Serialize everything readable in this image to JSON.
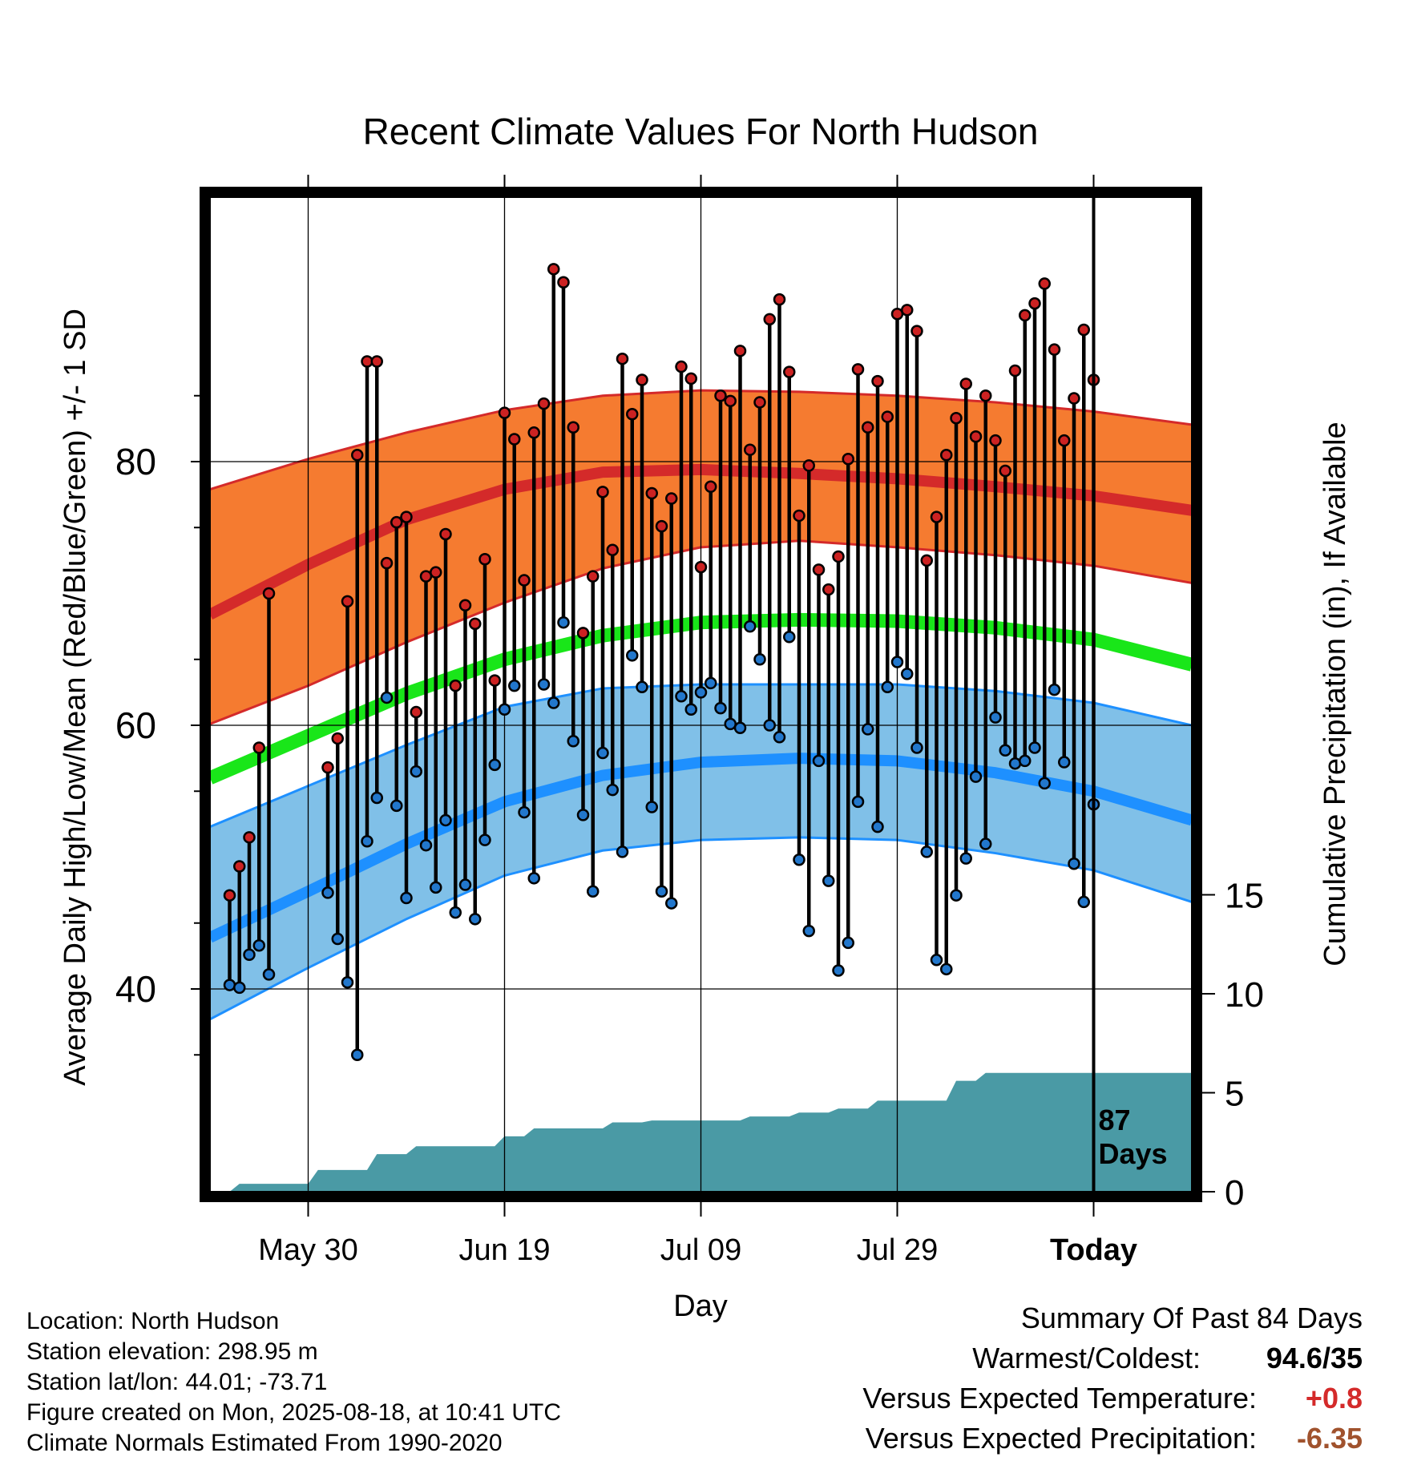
{
  "chart_data": {
    "type": "line",
    "title": "Recent Climate Values For North Hudson",
    "xlabel": "Day",
    "ylabel_left": "Average Daily High/Low/Mean (Red/Blue/Green) +/- 1 SD",
    "ylabel_right": "Cumulative Precipitation (in), If Available",
    "x_tick_labels": [
      "May 30",
      "Jun 19",
      "Jul 09",
      "Jul 29",
      "Today"
    ],
    "x_tick_day_index": [
      10,
      30,
      50,
      70,
      90
    ],
    "x_range_days": [
      0,
      100
    ],
    "ylim_left": [
      25,
      100
    ],
    "y_tick_labels_left": [
      "40",
      "60",
      "80"
    ],
    "y_tick_values_left": [
      40,
      60,
      80
    ],
    "ylim_right": [
      0,
      50
    ],
    "y_tick_labels_right": [
      "0",
      "5",
      "10",
      "15"
    ],
    "y_tick_values_right": [
      0,
      5,
      10,
      15
    ],
    "grid": true,
    "today_marker_label": "87\nDays",
    "today_line_day": 90,
    "normals": {
      "day": [
        0,
        10,
        20,
        30,
        40,
        50,
        60,
        70,
        80,
        90,
        100
      ],
      "high_mean": [
        68.4,
        72.2,
        75.6,
        77.9,
        79.2,
        79.4,
        79.1,
        78.7,
        78.1,
        77.4,
        76.3
      ],
      "high_upper": [
        77.9,
        80.2,
        82.2,
        83.9,
        85.0,
        85.4,
        85.3,
        85.0,
        84.5,
        83.8,
        82.8
      ],
      "high_lower": [
        60.1,
        63.0,
        66.3,
        69.3,
        71.9,
        73.5,
        74.0,
        73.5,
        72.9,
        72.1,
        70.8
      ],
      "mean": [
        56.0,
        59.2,
        62.4,
        65.0,
        66.8,
        67.8,
        68.0,
        67.9,
        67.4,
        66.5,
        64.6
      ],
      "low_mean": [
        43.9,
        47.4,
        51.0,
        54.2,
        56.2,
        57.2,
        57.5,
        57.3,
        56.4,
        55.0,
        52.8
      ],
      "low_upper": [
        52.3,
        55.4,
        58.5,
        61.4,
        62.8,
        63.1,
        63.1,
        63.1,
        62.6,
        61.7,
        60.0
      ],
      "low_lower": [
        37.7,
        41.6,
        45.3,
        48.6,
        50.5,
        51.3,
        51.5,
        51.3,
        50.3,
        49.0,
        46.6
      ]
    },
    "series": [
      {
        "name": "High",
        "color": "#cc2222",
        "values": [
          47.1,
          49.3,
          51.5,
          58.3,
          70.0,
          null,
          null,
          null,
          null,
          null,
          56.8,
          59.0,
          69.4,
          80.5,
          87.6,
          87.6,
          72.3,
          75.4,
          75.8,
          61.0,
          71.3,
          71.6,
          74.5,
          63.0,
          69.1,
          67.7,
          72.6,
          63.4,
          83.7,
          81.7,
          71.0,
          82.2,
          84.4,
          94.6,
          93.6,
          82.6,
          67.0,
          71.3,
          77.7,
          73.3,
          87.8,
          83.6,
          86.2,
          77.6,
          75.1,
          77.2,
          87.2,
          86.3,
          72.0,
          78.1,
          85.0,
          84.6,
          88.4,
          80.9,
          84.5,
          90.8,
          92.3,
          86.8,
          75.9,
          79.7,
          71.8,
          70.3,
          72.8,
          80.2,
          87.0,
          82.6,
          86.1,
          83.4,
          91.2,
          91.5,
          89.9,
          72.5,
          75.8,
          80.5,
          83.3,
          85.9,
          81.9,
          85.0,
          81.6,
          79.3,
          86.9,
          91.1,
          92.0,
          93.5,
          88.5,
          81.6,
          84.8,
          90.0,
          86.2
        ],
        "x_start_day": 2
      },
      {
        "name": "Low",
        "color": "#2277cc",
        "values": [
          40.3,
          40.1,
          42.6,
          43.3,
          41.1,
          null,
          null,
          null,
          null,
          null,
          47.3,
          43.8,
          40.5,
          35.0,
          51.2,
          54.5,
          62.1,
          53.9,
          46.9,
          56.5,
          50.9,
          47.7,
          52.8,
          45.8,
          47.9,
          45.3,
          51.3,
          57.0,
          61.2,
          63.0,
          53.4,
          48.4,
          63.1,
          61.7,
          67.8,
          58.8,
          53.2,
          47.4,
          57.9,
          55.1,
          50.4,
          65.3,
          62.9,
          53.8,
          47.4,
          46.5,
          62.2,
          61.2,
          62.5,
          63.2,
          61.3,
          60.1,
          59.8,
          67.5,
          65.0,
          60.0,
          59.1,
          66.7,
          49.8,
          44.4,
          57.3,
          48.2,
          41.4,
          43.5,
          54.2,
          59.7,
          52.3,
          62.9,
          64.8,
          63.9,
          58.3,
          50.4,
          42.2,
          41.5,
          47.1,
          49.9,
          56.1,
          51.0,
          60.6,
          58.1,
          57.1,
          57.3,
          58.3,
          55.6,
          62.7,
          57.2,
          49.5,
          46.6,
          54.0
        ],
        "x_start_day": 2
      }
    ],
    "precipitation_cumulative": {
      "name": "Cumulative Precipitation",
      "color": "#4a9aa5",
      "day": [
        2,
        3,
        10,
        11,
        16,
        17,
        20,
        21,
        29,
        30,
        32,
        33,
        40,
        41,
        44,
        45,
        54,
        55,
        59,
        60,
        63,
        64,
        67,
        68,
        75,
        76,
        78,
        79,
        100
      ],
      "values": [
        0.0,
        0.4,
        0.4,
        1.1,
        1.1,
        1.9,
        1.9,
        2.3,
        2.3,
        2.8,
        2.8,
        3.2,
        3.2,
        3.5,
        3.5,
        3.6,
        3.6,
        3.8,
        3.8,
        4.0,
        4.0,
        4.2,
        4.2,
        4.6,
        4.6,
        5.6,
        5.6,
        6.0,
        6.0
      ]
    }
  },
  "info": {
    "location": "Location: North Hudson",
    "elevation": "Station elevation: 298.95 m",
    "latlon": "Station lat/lon: 44.01; -73.71",
    "created": "Figure created on Mon, 2025-08-18, at 10:41 UTC",
    "normals": "Climate Normals Estimated From 1990-2020"
  },
  "summary": {
    "title": "Summary Of Past 84 Days",
    "warm_cold_label": "Warmest/Coldest:",
    "warm_cold_value": "94.6/35",
    "temp_label": "Versus Expected Temperature:",
    "temp_value": "+0.8",
    "temp_color": "#d42a2a",
    "precip_label": "Versus Expected Precipitation:",
    "precip_value": "-6.35",
    "precip_color": "#a0522d"
  },
  "colors": {
    "high_band": "#f57b30",
    "high_line": "#d42a2a",
    "mean_line": "#19e619",
    "low_band": "#80c0e8",
    "low_line": "#1e90ff",
    "precip_fill": "#4a9aa5",
    "high_dot": "#cc2222",
    "low_dot": "#2277cc"
  }
}
